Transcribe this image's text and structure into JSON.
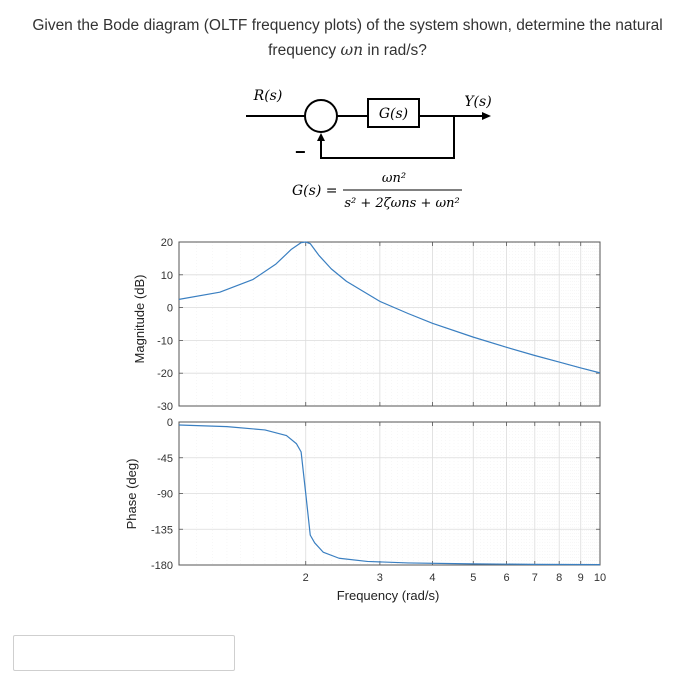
{
  "question": {
    "line1": "Given the Bode diagram (OLTF frequency plots) of the system shown, determine the natural",
    "line2_pre": "frequency ",
    "line2_symbol": "ωn",
    "line2_post": " in rad/s?"
  },
  "block_diagram": {
    "input_label": "R(s)",
    "block_label": "G(s)",
    "output_label": "Y(s)",
    "feedback_sign": "−",
    "tf_lhs": "G(s) =",
    "tf_numerator": "ωn²",
    "tf_denominator": "s² + 2ζωns + ωn²"
  },
  "chart_data": [
    {
      "type": "line",
      "panel": "magnitude",
      "xscale": "log",
      "xlim": [
        1,
        10
      ],
      "ylim": [
        -30,
        20
      ],
      "ylabel": "Magnitude (dB)",
      "yticks": [
        20,
        10,
        0,
        -10,
        -20,
        -30
      ],
      "grid": true,
      "line_color": "#3a7fc1",
      "wn": 2,
      "zeta": 0.05,
      "series": [
        {
          "x": [
            1,
            1.25,
            1.5,
            1.7,
            1.85,
            1.95,
            2,
            2.05,
            2.15,
            2.3,
            2.5,
            3,
            3.5,
            4,
            5,
            6,
            7,
            8,
            9,
            10
          ],
          "values": [
            2.5,
            4.7,
            8.6,
            13.3,
            17.8,
            19.8,
            20.0,
            19.5,
            15.9,
            11.8,
            8.0,
            1.9,
            -1.8,
            -4.8,
            -9.0,
            -12.1,
            -14.6,
            -16.6,
            -18.4,
            -19.9
          ]
        }
      ]
    },
    {
      "type": "line",
      "panel": "phase",
      "xscale": "log",
      "xlim": [
        1,
        10
      ],
      "ylim": [
        -180,
        0
      ],
      "xlabel": "Frequency (rad/s)",
      "ylabel": "Phase (deg)",
      "yticks": [
        0,
        -45,
        -90,
        -135,
        -180
      ],
      "xticks": [
        2,
        3,
        4,
        5,
        6,
        7,
        8,
        9,
        10
      ],
      "xtick_labels": [
        "2",
        "3",
        "4",
        "5",
        "6",
        "7",
        "8",
        "9",
        "10"
      ],
      "grid": true,
      "line_color": "#3a7fc1",
      "series": [
        {
          "x": [
            1,
            1.3,
            1.6,
            1.8,
            1.9,
            1.95,
            2,
            2.05,
            2.1,
            2.2,
            2.4,
            2.8,
            3.5,
            5,
            7,
            10
          ],
          "values": [
            -3.8,
            -5.8,
            -10.0,
            -17.1,
            -27.2,
            -37.6,
            -90,
            -142.4,
            -152.1,
            -163.8,
            -171.5,
            -175.5,
            -177.4,
            -178.6,
            -179.2,
            -179.5
          ]
        }
      ]
    }
  ],
  "answer_input": {
    "value": "",
    "placeholder": ""
  }
}
